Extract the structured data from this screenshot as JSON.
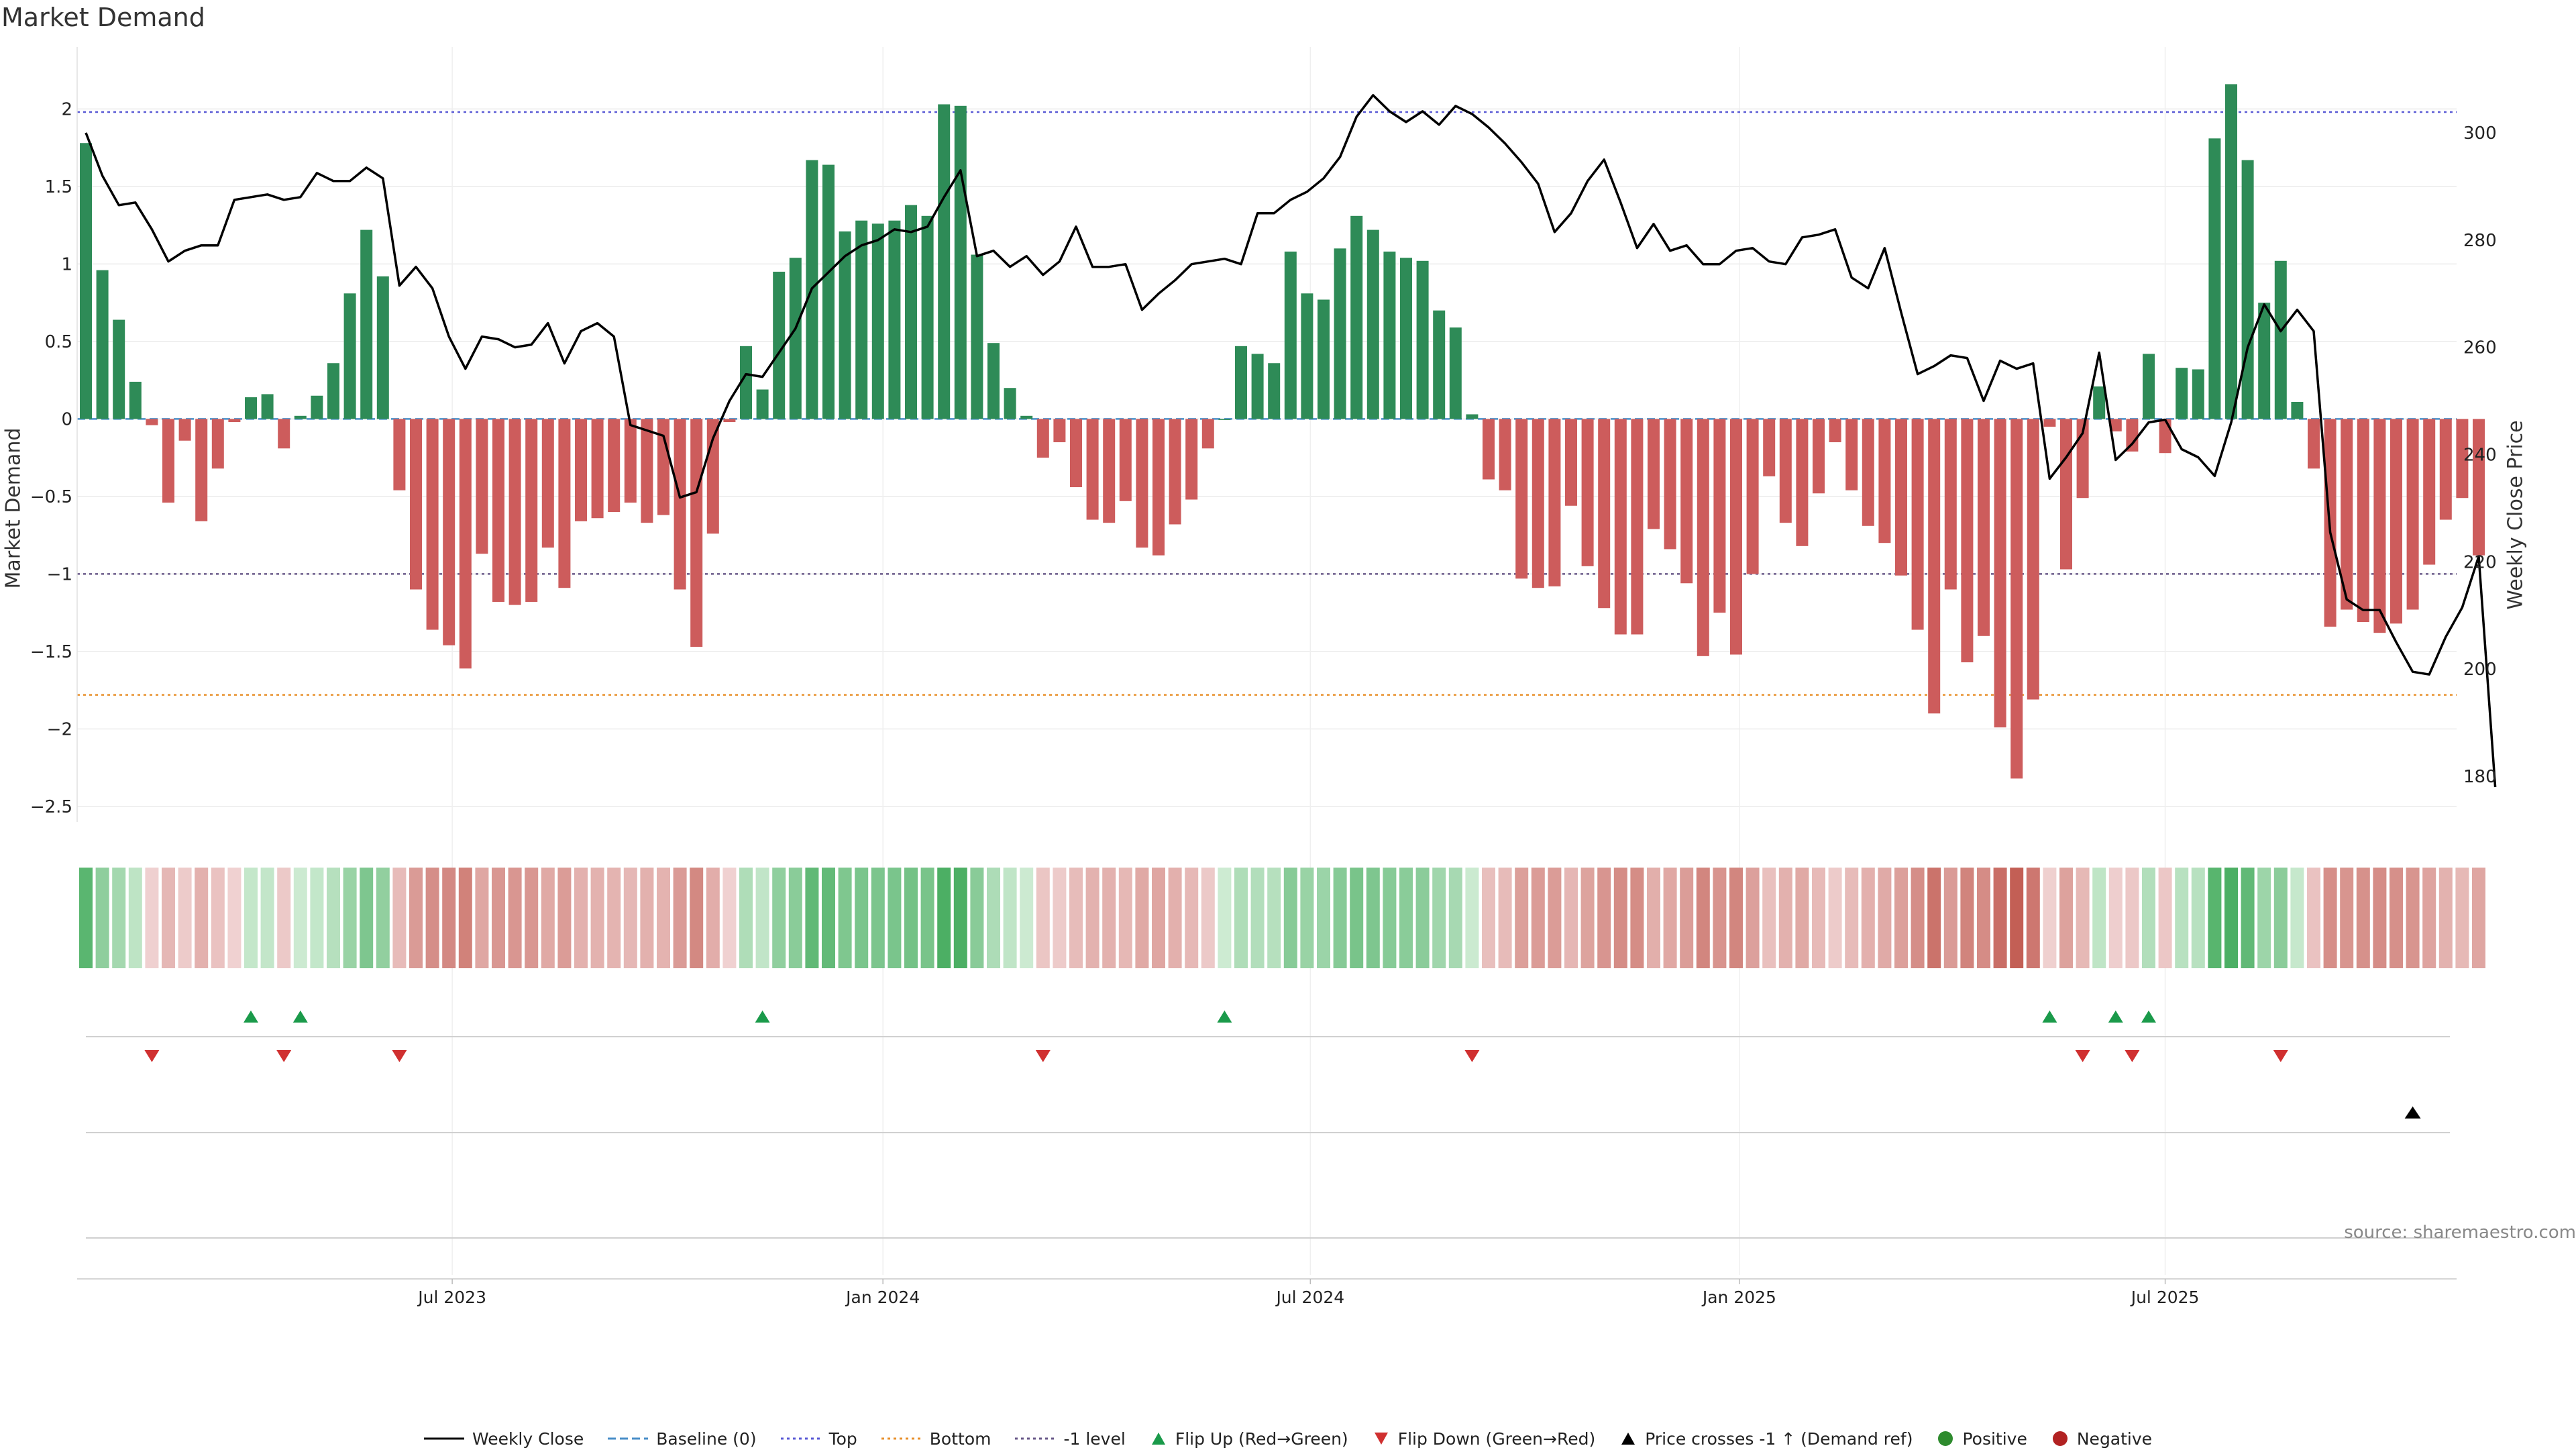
{
  "title": "Market Demand",
  "source": "source: sharemaestro.com",
  "colors": {
    "positive_bar": "#2e8b57",
    "negative_bar": "#cd5c5c",
    "price_line": "#000000",
    "top_line": "#5b5bd6",
    "bottom_line": "#e8912d",
    "minus_one_line": "#6a5a8a",
    "flip_up": "#1a9a4a",
    "flip_down": "#d03030"
  },
  "chart_data": {
    "type": "bar",
    "y_left_label": "Market Demand",
    "y_right_label": "Weekly Close Price",
    "y_left_ticks": [
      "2",
      "1.5",
      "1",
      "0.5",
      "0",
      "−0.5",
      "−1",
      "−1.5",
      "−2",
      "−2.5"
    ],
    "y_left_tick_values": [
      2,
      1.5,
      1,
      0.5,
      0,
      -0.5,
      -1,
      -1.5,
      -2,
      -2.5
    ],
    "y_left_range": [
      -2.6,
      2.4
    ],
    "y_right_ticks": [
      "300",
      "280",
      "260",
      "240",
      "220",
      "200",
      "180"
    ],
    "y_right_tick_values": [
      300,
      280,
      260,
      240,
      220,
      200,
      180
    ],
    "y_right_range": [
      171.5,
      316
    ],
    "x_ticks": [
      "Jul 2023",
      "Jan 2024",
      "Jul 2024",
      "Jan 2025",
      "Jul 2025"
    ],
    "x_tick_weeks": [
      22.2,
      48.3,
      74.2,
      100.2,
      126.0
    ],
    "reference_lines": {
      "top": 1.98,
      "bottom": -1.78,
      "minus_one": -1.0,
      "baseline": 0
    },
    "demand": [
      1.78,
      0.96,
      0.64,
      0.24,
      -0.04,
      -0.54,
      -0.14,
      -0.66,
      -0.32,
      -0.02,
      0.14,
      0.16,
      -0.19,
      0.02,
      0.15,
      0.36,
      0.81,
      1.22,
      0.92,
      -0.46,
      -1.1,
      -1.36,
      -1.46,
      -1.61,
      -0.87,
      -1.18,
      -1.2,
      -1.18,
      -0.83,
      -1.09,
      -0.66,
      -0.64,
      -0.6,
      -0.54,
      -0.67,
      -0.62,
      -1.1,
      -1.47,
      -0.74,
      -0.02,
      0.47,
      0.19,
      0.95,
      1.04,
      1.67,
      1.64,
      1.21,
      1.28,
      1.26,
      1.28,
      1.38,
      1.31,
      2.03,
      2.02,
      1.06,
      0.49,
      0.2,
      0.02,
      -0.25,
      -0.15,
      -0.44,
      -0.65,
      -0.67,
      -0.53,
      -0.83,
      -0.88,
      -0.68,
      -0.52,
      -0.19,
      0.0,
      0.47,
      0.42,
      0.36,
      1.08,
      0.81,
      0.77,
      1.1,
      1.31,
      1.22,
      1.08,
      1.04,
      1.02,
      0.7,
      0.59,
      0.03,
      -0.39,
      -0.46,
      -1.03,
      -1.09,
      -1.08,
      -0.56,
      -0.95,
      -1.22,
      -1.39,
      -1.39,
      -0.71,
      -0.84,
      -1.06,
      -1.53,
      -1.25,
      -1.52,
      -1.0,
      -0.37,
      -0.67,
      -0.82,
      -0.48,
      -0.15,
      -0.46,
      -0.69,
      -0.8,
      -1.01,
      -1.36,
      -1.9,
      -1.1,
      -1.57,
      -1.4,
      -1.99,
      -2.32,
      -1.81,
      -0.05,
      -0.97,
      -0.51,
      0.21,
      -0.08,
      -0.21,
      0.42,
      -0.22,
      0.33,
      0.32,
      1.81,
      2.16,
      1.67,
      0.75,
      1.02,
      0.11,
      -0.32,
      -1.34,
      -1.23,
      -1.31,
      -1.38,
      -1.32,
      -1.23,
      -0.94,
      -0.65,
      -0.51,
      -0.88
    ],
    "weekly_close": [
      300.0,
      292.0,
      286.5,
      287.0,
      282.0,
      276.0,
      278.0,
      279.0,
      279.0,
      287.5,
      288.0,
      288.5,
      287.5,
      288.0,
      292.5,
      291.0,
      291.0,
      293.5,
      291.5,
      271.5,
      275.0,
      271.0,
      262.0,
      256.0,
      262.0,
      261.5,
      260.0,
      260.5,
      264.5,
      257.0,
      263.0,
      264.5,
      262.0,
      245.5,
      244.5,
      243.5,
      232.0,
      233.0,
      243.0,
      250.0,
      255.0,
      254.5,
      259.0,
      263.5,
      271.0,
      274.0,
      277.0,
      279.0,
      280.0,
      282.0,
      281.5,
      282.5,
      288.0,
      293.0,
      277.0,
      278.0,
      275.0,
      277.0,
      273.5,
      276.0,
      282.5,
      275.0,
      275.0,
      275.5,
      267.0,
      270.0,
      272.5,
      275.5,
      276.0,
      276.5,
      275.5,
      285.0,
      285.0,
      287.5,
      289.0,
      291.5,
      295.5,
      303.0,
      307.0,
      304.0,
      302.0,
      304.0,
      301.5,
      305.0,
      303.5,
      301.0,
      298.0,
      294.5,
      290.5,
      281.5,
      285.0,
      291.0,
      295.0,
      287.0,
      278.5,
      283.0,
      278.0,
      279.0,
      275.5,
      275.5,
      278.0,
      278.5,
      276.0,
      275.5,
      280.5,
      281.0,
      282.0,
      273.0,
      271.0,
      278.5,
      266.5,
      255.0,
      256.5,
      258.5,
      258.0,
      250.0,
      257.5,
      256.0,
      257.0,
      235.5,
      239.5,
      244.0,
      259.0,
      239.0,
      242.0,
      246.0,
      246.5,
      241.0,
      239.5,
      236.0,
      246.0,
      260.0,
      268.0,
      263.0,
      267.0,
      263.0,
      225.5,
      213.0,
      211.0,
      211.0,
      205.0,
      199.5,
      199.0,
      206.0,
      211.5,
      221.0,
      178.0
    ],
    "flip_up_weeks": [
      10,
      13,
      41,
      69,
      119,
      123,
      125
    ],
    "flip_down_weeks": [
      4,
      12,
      19,
      58,
      84,
      121,
      124,
      133
    ],
    "price_cross_weeks": [
      141
    ]
  },
  "legend": [
    {
      "key": "weekly_close",
      "label": "Weekly Close",
      "icon": "solid-line"
    },
    {
      "key": "baseline",
      "label": "Baseline (0)",
      "icon": "dashed-line"
    },
    {
      "key": "top",
      "label": "Top",
      "icon": "dotted-line"
    },
    {
      "key": "bottom",
      "label": "Bottom",
      "icon": "dotted-line"
    },
    {
      "key": "minus_one",
      "label": "-1 level",
      "icon": "dotted-line"
    },
    {
      "key": "flip_up",
      "label": "Flip Up (Red→Green)",
      "icon": "triangle-up"
    },
    {
      "key": "flip_down",
      "label": "Flip Down (Green→Red)",
      "icon": "triangle-down"
    },
    {
      "key": "price_cross",
      "label": "Price crosses -1 ↑ (Demand ref)",
      "icon": "triangle-up"
    },
    {
      "key": "positive",
      "label": "Positive",
      "icon": "dot"
    },
    {
      "key": "negative",
      "label": "Negative",
      "icon": "dot"
    }
  ]
}
